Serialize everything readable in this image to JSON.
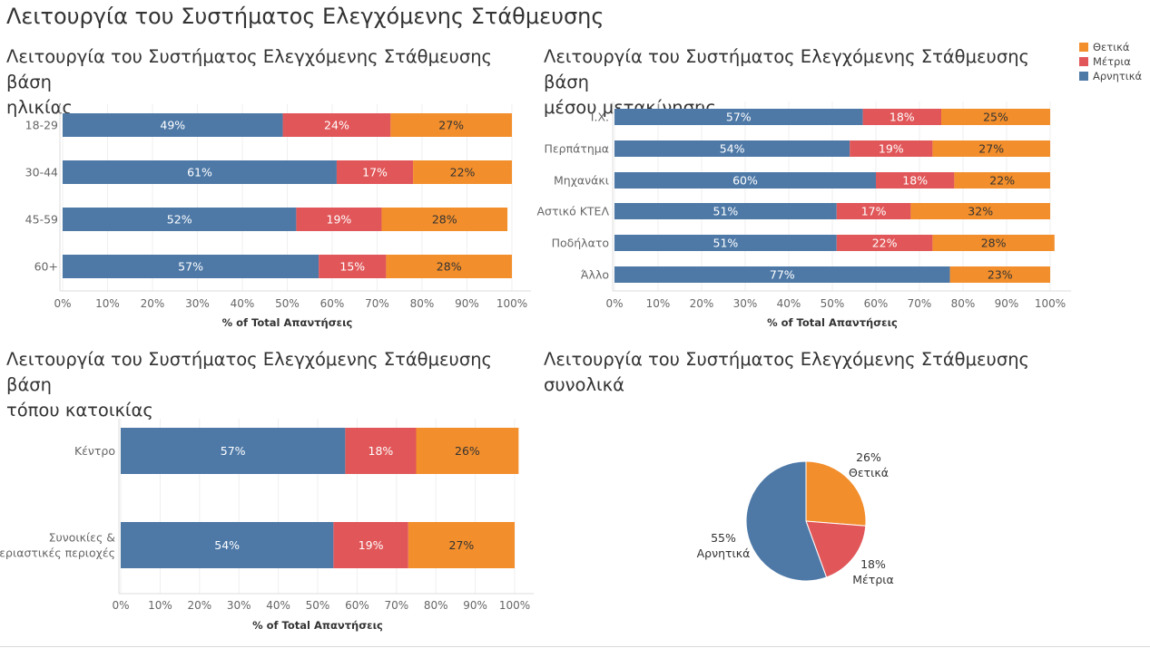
{
  "dashboard_title": "Λειτουργία του Συστήματος Ελεγχόμενης Στάθμευσης",
  "colors": {
    "positive": "#F28E2B",
    "medium": "#E15759",
    "negative": "#4E79A7"
  },
  "legend": [
    {
      "label": "Θετικά",
      "color": "#F28E2B"
    },
    {
      "label": "Μέτρια",
      "color": "#E15759"
    },
    {
      "label": "Αρνητικά",
      "color": "#4E79A7"
    }
  ],
  "chart_data": [
    {
      "type": "bar",
      "orientation": "horizontal",
      "stacked": true,
      "title_line1": "Λειτουργία του Συστήματος Ελεγχόμενης Στάθμευσης βάση",
      "title_line2": "ηλικίας",
      "xlabel": "% of Total Απαντήσεις",
      "xlim": [
        0,
        100
      ],
      "xticks": [
        "0%",
        "10%",
        "20%",
        "30%",
        "40%",
        "50%",
        "60%",
        "70%",
        "80%",
        "90%",
        "100%"
      ],
      "categories": [
        "18-29",
        "30-44",
        "45-59",
        "60+"
      ],
      "series": [
        {
          "name": "Αρνητικά",
          "values": [
            49,
            61,
            52,
            57
          ]
        },
        {
          "name": "Μέτρια",
          "values": [
            24,
            17,
            19,
            15
          ]
        },
        {
          "name": "Θετικά",
          "values": [
            27,
            22,
            28,
            28
          ]
        }
      ],
      "grid": true
    },
    {
      "type": "bar",
      "orientation": "horizontal",
      "stacked": true,
      "title_line1": "Λειτουργία του Συστήματος Ελεγχόμενης Στάθμευσης βάση",
      "title_line2": "μέσου μετακίνησης",
      "xlabel": "% of Total Απαντήσεις",
      "xlim": [
        0,
        100
      ],
      "xticks": [
        "0%",
        "10%",
        "20%",
        "30%",
        "40%",
        "50%",
        "60%",
        "70%",
        "80%",
        "90%",
        "100%"
      ],
      "categories": [
        "Ι.Χ.",
        "Περπάτημα",
        "Μηχανάκι",
        "Αστικό ΚΤΕΛ",
        "Ποδήλατο",
        "Άλλο"
      ],
      "series": [
        {
          "name": "Αρνητικά",
          "values": [
            57,
            54,
            60,
            51,
            51,
            77
          ]
        },
        {
          "name": "Μέτρια",
          "values": [
            18,
            19,
            18,
            17,
            22,
            0
          ]
        },
        {
          "name": "Θετικά",
          "values": [
            25,
            27,
            22,
            32,
            28,
            23
          ]
        }
      ],
      "grid": true
    },
    {
      "type": "bar",
      "orientation": "horizontal",
      "stacked": true,
      "title_line1": "Λειτουργία του Συστήματος Ελεγχόμενης Στάθμευσης βάση",
      "title_line2": "τόπου κατοικίας",
      "xlabel": "% of Total Απαντήσεις",
      "xlim": [
        0,
        100
      ],
      "xticks": [
        "0%",
        "10%",
        "20%",
        "30%",
        "40%",
        "50%",
        "60%",
        "70%",
        "80%",
        "90%",
        "100%"
      ],
      "categories": [
        "Κέντρο",
        "Συνοικίες & Περιαστικές περιοχές"
      ],
      "category_lines": [
        [
          "Κέντρο"
        ],
        [
          "Συνοικίες &",
          "Περιαστικές περιοχές"
        ]
      ],
      "series": [
        {
          "name": "Αρνητικά",
          "values": [
            57,
            54
          ]
        },
        {
          "name": "Μέτρια",
          "values": [
            18,
            19
          ]
        },
        {
          "name": "Θετικά",
          "values": [
            26,
            27
          ]
        }
      ],
      "grid": true
    },
    {
      "type": "pie",
      "title_line1": "Λειτουργία του Συστήματος Ελεγχόμενης Στάθμευσης",
      "title_line2": "συνολικά",
      "slices": [
        {
          "label": "Θετικά",
          "value": 26,
          "pct": "26%"
        },
        {
          "label": "Μέτρια",
          "value": 18,
          "pct": "18%"
        },
        {
          "label": "Αρνητικά",
          "value": 55,
          "pct": "55%"
        }
      ]
    }
  ]
}
